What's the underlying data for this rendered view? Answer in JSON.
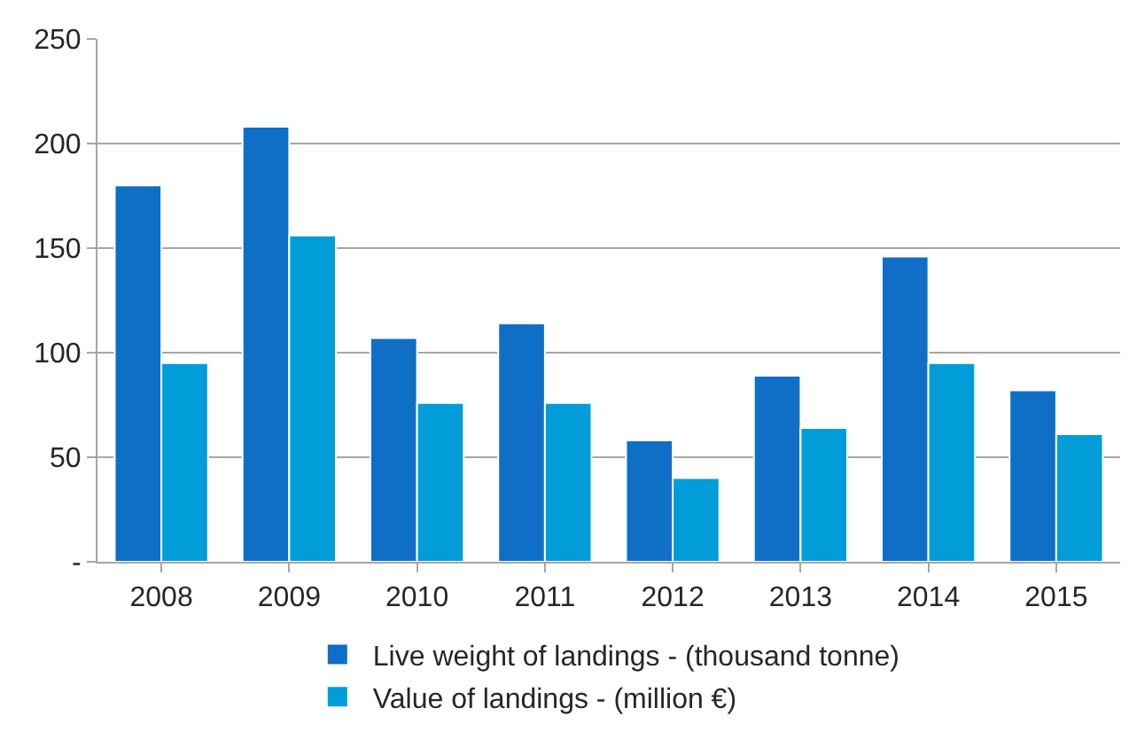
{
  "chart_data": {
    "type": "bar",
    "categories": [
      "2008",
      "2009",
      "2010",
      "2011",
      "2012",
      "2013",
      "2014",
      "2015"
    ],
    "series": [
      {
        "name": "Live weight of landings - (thousand tonne)",
        "color": "#0f6fc6",
        "values": [
          180,
          208,
          107,
          114,
          58,
          89,
          146,
          82
        ]
      },
      {
        "name": "Value of landings - (million €)",
        "color": "#009dd9",
        "values": [
          95,
          156,
          76,
          76,
          40,
          64,
          95,
          61
        ]
      }
    ],
    "ylim": [
      0,
      250
    ],
    "yticks": [
      {
        "value": 0,
        "label": "-"
      },
      50,
      100,
      150,
      200,
      250
    ],
    "grid": "y",
    "legend": "bottom"
  }
}
